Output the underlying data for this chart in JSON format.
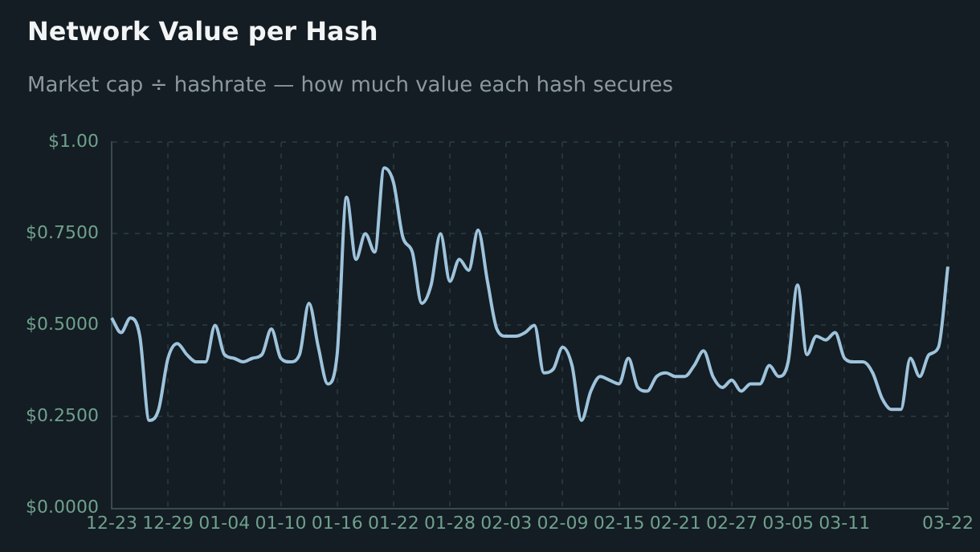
{
  "chart_data": {
    "type": "line",
    "title": "Network Value per Hash",
    "subtitle": "Market cap ÷ hashrate — how much value each hash secures",
    "categories": [
      "12-23",
      null,
      null,
      null,
      null,
      null,
      "12-29",
      null,
      null,
      null,
      null,
      null,
      "01-04",
      null,
      null,
      null,
      null,
      null,
      "01-10",
      null,
      null,
      null,
      null,
      null,
      "01-16",
      null,
      null,
      null,
      null,
      null,
      "01-22",
      null,
      null,
      null,
      null,
      null,
      "01-28",
      null,
      null,
      null,
      null,
      null,
      "02-03",
      null,
      null,
      null,
      null,
      null,
      "02-09",
      null,
      null,
      null,
      null,
      null,
      "02-15",
      null,
      null,
      null,
      null,
      null,
      "02-21",
      null,
      null,
      null,
      null,
      null,
      "02-27",
      null,
      null,
      null,
      null,
      null,
      "03-05",
      null,
      null,
      null,
      null,
      null,
      "03-11",
      null,
      null,
      null,
      null,
      null,
      null,
      null,
      null,
      null,
      null,
      "03-22"
    ],
    "series": [
      {
        "color": "#9ec3dc",
        "values": [
          0.52,
          0.48,
          0.52,
          0.47,
          0.24,
          0.27,
          0.41,
          0.45,
          0.42,
          0.4,
          0.4,
          0.5,
          0.42,
          0.41,
          0.4,
          0.41,
          0.42,
          0.49,
          0.41,
          0.4,
          0.42,
          0.56,
          0.44,
          0.34,
          0.42,
          0.85,
          0.68,
          0.75,
          0.7,
          0.93,
          0.89,
          0.74,
          0.7,
          0.56,
          0.61,
          0.75,
          0.62,
          0.68,
          0.65,
          0.76,
          0.62,
          0.49,
          0.47,
          0.47,
          0.48,
          0.5,
          0.37,
          0.38,
          0.44,
          0.39,
          0.24,
          0.32,
          0.36,
          0.35,
          0.34,
          0.41,
          0.33,
          0.32,
          0.36,
          0.37,
          0.36,
          0.36,
          0.39,
          0.43,
          0.36,
          0.33,
          0.35,
          0.32,
          0.34,
          0.34,
          0.39,
          0.36,
          0.4,
          0.61,
          0.42,
          0.47,
          0.46,
          0.48,
          0.41,
          0.4,
          0.4,
          0.37,
          0.3,
          0.27,
          0.27,
          0.41,
          0.36,
          0.42,
          0.44,
          0.66
        ]
      }
    ],
    "ylim": [
      0,
      1
    ],
    "yticks": [
      {
        "value": 0,
        "label": "$0.0000"
      },
      {
        "value": 0.25,
        "label": "$0.2500"
      },
      {
        "value": 0.5,
        "label": "$0.5000"
      },
      {
        "value": 0.75,
        "label": "$0.7500"
      },
      {
        "value": 1,
        "label": "$1.00"
      }
    ],
    "grid": true,
    "line_style": "solid"
  }
}
